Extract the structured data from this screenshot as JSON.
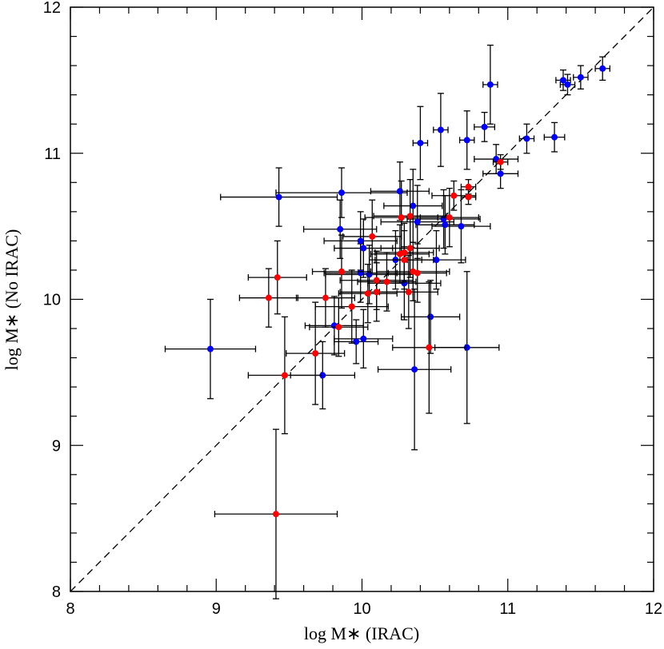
{
  "chart_data": {
    "type": "scatter",
    "xlabel": "log M∗ (IRAC)",
    "ylabel": "log M∗ (No IRAC)",
    "xlim": [
      8,
      12
    ],
    "ylim": [
      8,
      12
    ],
    "xticks": [
      8,
      9,
      10,
      11,
      12
    ],
    "yticks": [
      8,
      9,
      10,
      11,
      12
    ],
    "xminorticks": [
      8.2,
      8.4,
      8.6,
      8.8,
      9.2,
      9.4,
      9.6,
      9.8,
      10.2,
      10.4,
      10.6,
      10.8,
      11.2,
      11.4,
      11.6,
      11.8
    ],
    "yminorticks": [
      8.2,
      8.4,
      8.6,
      8.8,
      9.2,
      9.4,
      9.6,
      9.8,
      10.2,
      10.4,
      10.6,
      10.8,
      11.2,
      11.4,
      11.6,
      11.8
    ],
    "diagonal": true,
    "series": [
      {
        "color": "#0000ff",
        "x": [
          8.96,
          9.43,
          9.73,
          9.81,
          9.85,
          9.86,
          9.96,
          10.01,
          9.99,
          10.01,
          9.99,
          10.05,
          10.23,
          10.26,
          10.29,
          10.35,
          10.38,
          10.36,
          10.4,
          10.47,
          10.51,
          10.54,
          10.56,
          10.57,
          10.68,
          10.72,
          10.72,
          10.84,
          10.88,
          10.92,
          10.95,
          11.13,
          11.32,
          11.38,
          11.41,
          11.5,
          11.65
        ],
        "values": [
          9.66,
          10.7,
          9.48,
          9.82,
          10.48,
          10.73,
          9.71,
          9.73,
          10.4,
          10.35,
          10.18,
          10.17,
          10.27,
          10.74,
          10.11,
          10.64,
          10.53,
          9.52,
          11.07,
          9.88,
          10.27,
          11.16,
          10.55,
          10.51,
          10.5,
          9.67,
          11.09,
          11.18,
          11.47,
          10.96,
          10.86,
          11.1,
          11.11,
          11.5,
          11.47,
          11.52,
          11.58
        ],
        "xerr": [
          0.31,
          0.4,
          0.22,
          0.2,
          0.25,
          0.45,
          0.15,
          0.2,
          0.25,
          0.2,
          0.25,
          0.3,
          0.18,
          0.2,
          0.25,
          0.2,
          0.25,
          0.25,
          0.05,
          0.2,
          0.2,
          0.05,
          0.25,
          0.2,
          0.2,
          0.22,
          0.05,
          0.07,
          0.05,
          0.15,
          0.12,
          0.05,
          0.07,
          0.05,
          0.05,
          0.05,
          0.05
        ],
        "yerr": [
          0.34,
          0.2,
          0.23,
          0.2,
          0.2,
          0.17,
          0.15,
          0.2,
          0.2,
          0.2,
          0.2,
          0.2,
          0.2,
          0.2,
          0.25,
          0.25,
          0.25,
          0.55,
          0.25,
          0.25,
          0.2,
          0.25,
          0.2,
          0.2,
          0.25,
          0.52,
          0.2,
          0.1,
          0.27,
          0.1,
          0.1,
          0.1,
          0.1,
          0.07,
          0.07,
          0.08,
          0.08
        ]
      },
      {
        "color": "#ff0000",
        "x": [
          9.41,
          9.36,
          9.42,
          9.47,
          9.68,
          9.75,
          9.84,
          9.86,
          9.93,
          10.04,
          10.07,
          10.1,
          10.1,
          10.17,
          10.27,
          10.29,
          10.33,
          10.33,
          10.32,
          10.35,
          10.38,
          10.46,
          10.6,
          10.63,
          10.73,
          10.73,
          10.95,
          10.29,
          10.26
        ],
        "values": [
          8.53,
          10.01,
          10.15,
          9.48,
          9.63,
          10.01,
          9.81,
          10.19,
          9.95,
          10.04,
          10.43,
          10.13,
          10.05,
          10.12,
          10.56,
          10.27,
          10.57,
          10.35,
          10.05,
          10.19,
          10.18,
          9.67,
          10.56,
          10.71,
          10.7,
          10.77,
          10.94,
          10.32,
          10.31
        ],
        "xerr": [
          0.42,
          0.2,
          0.2,
          0.25,
          0.2,
          0.2,
          0.2,
          0.2,
          0.25,
          0.2,
          0.2,
          0.25,
          0.25,
          0.2,
          0.25,
          0.2,
          0.25,
          0.2,
          0.2,
          0.25,
          0.2,
          0.25,
          0.2,
          0.15,
          0.05,
          0.05,
          0.05,
          0.2,
          0.2
        ],
        "yerr": [
          0.58,
          0.2,
          0.25,
          0.4,
          0.35,
          0.2,
          0.2,
          0.25,
          0.25,
          0.2,
          0.25,
          0.2,
          0.2,
          0.2,
          0.25,
          0.2,
          0.25,
          0.2,
          0.25,
          0.2,
          0.2,
          0.45,
          0.2,
          0.1,
          0.05,
          0.05,
          0.05,
          0.2,
          0.2
        ]
      }
    ]
  }
}
